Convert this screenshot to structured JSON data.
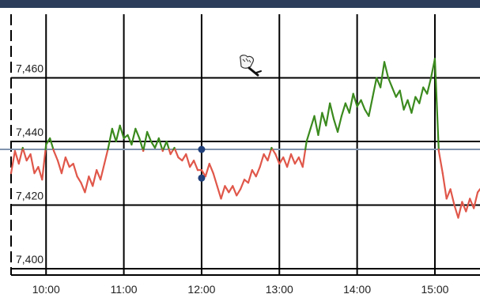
{
  "chart_data": {
    "type": "line",
    "title": "",
    "xlabel": "",
    "ylabel": "",
    "x_ticks": [
      "10:00",
      "11:00",
      "12:00",
      "13:00",
      "14:00",
      "15:00"
    ],
    "y_ticks": [
      {
        "value": 7400,
        "label": "7,400"
      },
      {
        "value": 7420,
        "label": "7,420"
      },
      {
        "value": 7440,
        "label": "7,440"
      },
      {
        "value": 7460,
        "label": "7,460"
      }
    ],
    "xlim": [
      9.55,
      15.58
    ],
    "ylim": [
      7398,
      7480
    ],
    "grid": true,
    "reference_line": {
      "value": 7437.5,
      "color": "#7f93ad"
    },
    "colors": {
      "above": "#3b8a1e",
      "below": "#e0574a",
      "grid": "#000000",
      "marker": "#1f3f7a",
      "header": "#2b3d5a"
    },
    "markers": [
      {
        "x": 12.0,
        "y": 7437.5
      },
      {
        "x": 12.0,
        "y": 7428.5
      }
    ],
    "series": [
      {
        "x": [
          9.55,
          9.6,
          9.65,
          9.7,
          9.75,
          9.8,
          9.85,
          9.9,
          9.95,
          10.0,
          10.05,
          10.1,
          10.15,
          10.2,
          10.25,
          10.3,
          10.35,
          10.4,
          10.45,
          10.5,
          10.55,
          10.6,
          10.65,
          10.7,
          10.75,
          10.8,
          10.85,
          10.9,
          10.95,
          11.0,
          11.05,
          11.1,
          11.15,
          11.2,
          11.25,
          11.3,
          11.35,
          11.4,
          11.45,
          11.5,
          11.55,
          11.6,
          11.65,
          11.7,
          11.75,
          11.8,
          11.85,
          11.9,
          11.95,
          12.0,
          12.05,
          12.1,
          12.15,
          12.2,
          12.25,
          12.3,
          12.35,
          12.4,
          12.45,
          12.5,
          12.55,
          12.6,
          12.65,
          12.7,
          12.75,
          12.8,
          12.85,
          12.9,
          12.95,
          13.0,
          13.05,
          13.1,
          13.15,
          13.2,
          13.25,
          13.3,
          13.35,
          13.4,
          13.45,
          13.5,
          13.55,
          13.6,
          13.65,
          13.7,
          13.75,
          13.8,
          13.85,
          13.9,
          13.95,
          14.0,
          14.05,
          14.1,
          14.15,
          14.2,
          14.25,
          14.3,
          14.35,
          14.4,
          14.45,
          14.5,
          14.55,
          14.6,
          14.65,
          14.7,
          14.75,
          14.8,
          14.85,
          14.9,
          14.95,
          15.0,
          15.05,
          15.1,
          15.15,
          15.2,
          15.25,
          15.3,
          15.35,
          15.4,
          15.45,
          15.5,
          15.55,
          15.58
        ],
        "y": [
          7430,
          7437,
          7433,
          7438,
          7434,
          7436,
          7430,
          7432,
          7428,
          7439,
          7441,
          7437,
          7434,
          7430,
          7435,
          7432,
          7433,
          7429,
          7427,
          7424,
          7429,
          7426,
          7431,
          7428,
          7433,
          7438,
          7444,
          7440,
          7445,
          7441,
          7442,
          7439,
          7444,
          7441,
          7437,
          7443,
          7440,
          7438,
          7441,
          7437,
          7440,
          7436,
          7438,
          7435,
          7434,
          7436,
          7432,
          7434,
          7431,
          7431,
          7429,
          7433,
          7430,
          7426,
          7422,
          7426,
          7424,
          7426,
          7423,
          7425,
          7428,
          7427,
          7431,
          7429,
          7432,
          7436,
          7434,
          7438,
          7436,
          7433,
          7435,
          7432,
          7436,
          7433,
          7435,
          7432,
          7440,
          7444,
          7448,
          7442,
          7449,
          7445,
          7452,
          7447,
          7443,
          7448,
          7452,
          7449,
          7455,
          7451,
          7453,
          7450,
          7448,
          7454,
          7460,
          7457,
          7465,
          7460,
          7457,
          7454,
          7456,
          7450,
          7453,
          7449,
          7454,
          7452,
          7457,
          7455,
          7460,
          7466,
          7437,
          7430,
          7422,
          7425,
          7420,
          7416,
          7421,
          7418,
          7422,
          7419,
          7424,
          7425
        ]
      }
    ]
  }
}
